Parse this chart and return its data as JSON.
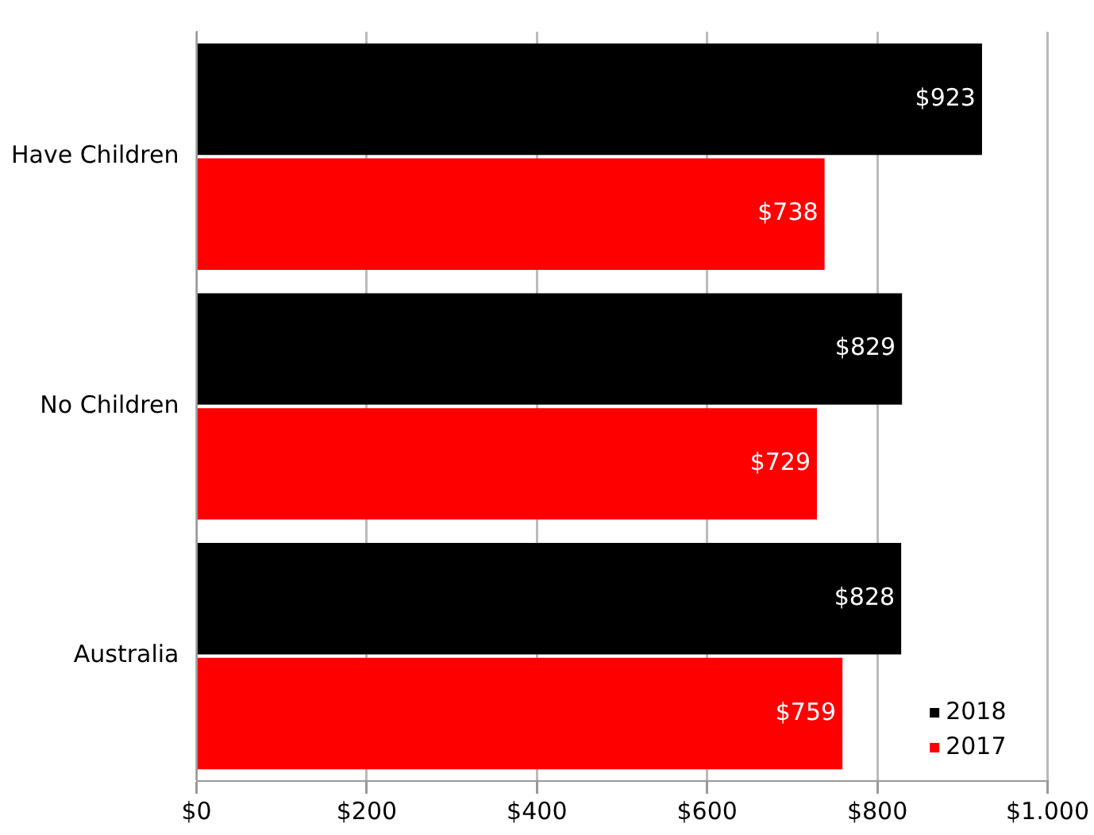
{
  "chart_data": {
    "type": "bar",
    "orientation": "horizontal",
    "categories": [
      "Have Children",
      "No Children",
      "Australia"
    ],
    "series": [
      {
        "name": "2018",
        "color": "#000000",
        "values": [
          923,
          829,
          828
        ],
        "value_labels": [
          "$923",
          "$829",
          "$828"
        ]
      },
      {
        "name": "2017",
        "color": "#ff0000",
        "values": [
          738,
          729,
          759
        ],
        "value_labels": [
          "$738",
          "$729",
          "$759"
        ]
      }
    ],
    "xlim": [
      0,
      1000
    ],
    "xticks": [
      {
        "value": 0,
        "label": "$0"
      },
      {
        "value": 200,
        "label": "$200"
      },
      {
        "value": 400,
        "label": "$400"
      },
      {
        "value": 600,
        "label": "$600"
      },
      {
        "value": 800,
        "label": "$800"
      },
      {
        "value": 1000,
        "label": "$1.000"
      }
    ],
    "grid": "x",
    "legend": "bottom right"
  }
}
